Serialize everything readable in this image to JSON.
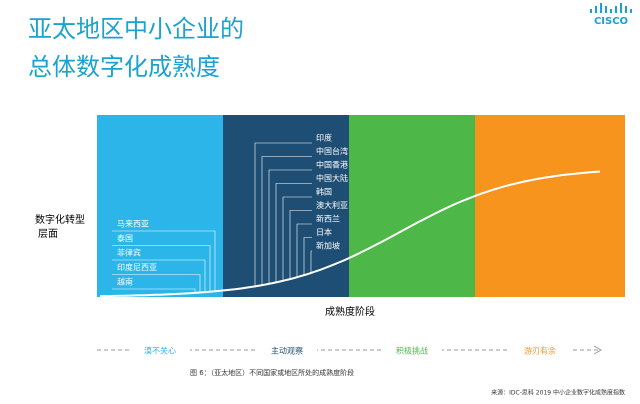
{
  "logo": "CISCO",
  "title": [
    "亚太地区中小企业的",
    "总体数字化成熟度"
  ],
  "y_label": [
    "数字化转型",
    "层面"
  ],
  "x_label": "成熟度阶段",
  "stages": [
    "漠不关心",
    "主动观察",
    "积极挑战",
    "游刃有余"
  ],
  "groups": [
    [
      "马来西亚",
      "泰国",
      "菲律宾",
      "印度尼西亚",
      "越南"
    ],
    [
      "印度",
      "中国台湾",
      "中国香港",
      "中国大陆",
      "韩国",
      "澳大利亚",
      "新西兰",
      "日本",
      "新加坡"
    ]
  ],
  "caption": "图 6：（亚太地区）不同国家或地区所处的成熟度阶段",
  "source": "来源：IDC-思科 2019 中小企业数字化成熟度指数"
}
